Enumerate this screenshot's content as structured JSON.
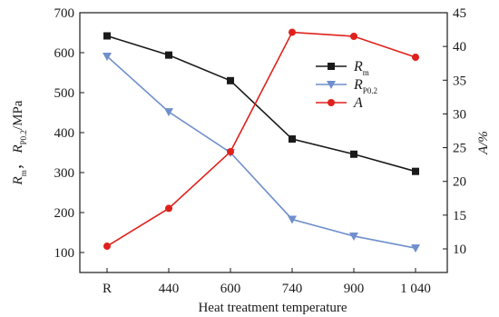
{
  "chart_data": {
    "type": "line",
    "categories": [
      "R",
      "440",
      "600",
      "740",
      "900",
      "1 040"
    ],
    "xlabel": "Heat treatment temperature",
    "ylabel_left": {
      "main": "R",
      "sub1": "m",
      "sep": "，",
      "main2": "R",
      "sub2": "P0.2",
      "unit": "/MPa"
    },
    "ylabel_right": "A/%",
    "ylim_left": [
      50,
      700
    ],
    "yticks_left": [
      100,
      200,
      300,
      400,
      500,
      600,
      700
    ],
    "ylim_right": [
      6.5,
      45
    ],
    "yticks_right": [
      10,
      15,
      20,
      25,
      30,
      35,
      40,
      45
    ],
    "legend_position": "top-right",
    "series": [
      {
        "name": "R",
        "name_sub": "m",
        "axis": "left",
        "color": "#1a1a1a",
        "marker": "square",
        "values": [
          642,
          594,
          530,
          384,
          346,
          303
        ]
      },
      {
        "name": "R",
        "name_sub": "P0.2",
        "axis": "left",
        "color": "#6f8fcc",
        "marker": "triangle-down",
        "values": [
          591,
          452,
          350,
          183,
          141,
          111
        ]
      },
      {
        "name": "A",
        "name_sub": "",
        "axis": "right",
        "color": "#e0201b",
        "marker": "circle",
        "values": [
          10.4,
          16.0,
          24.4,
          42.1,
          41.5,
          38.4
        ]
      }
    ]
  }
}
